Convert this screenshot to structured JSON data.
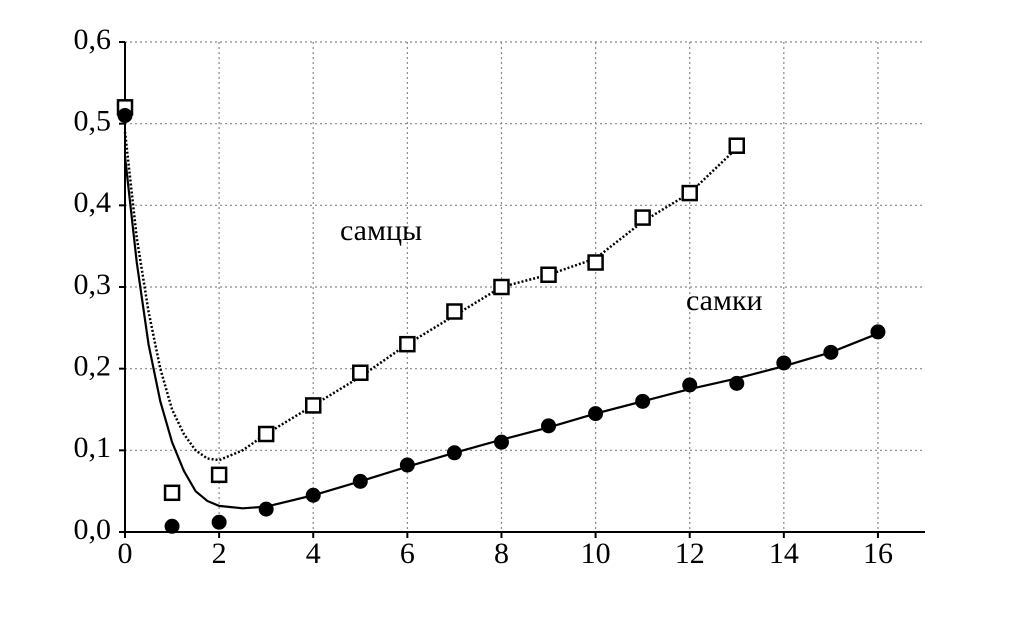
{
  "chart_data": {
    "type": "scatter",
    "series": [
      {
        "marker": "square",
        "color": "#000000",
        "x": [
          0,
          1,
          2,
          3,
          4,
          5,
          6,
          7,
          8,
          9,
          10,
          11,
          12,
          13
        ],
        "values": [
          0.52,
          0.048,
          0.07,
          0.12,
          0.155,
          0.195,
          0.23,
          0.27,
          0.3,
          0.315,
          0.33,
          0.385,
          0.415,
          0.473
        ]
      },
      {
        "marker": "circle",
        "color": "#000000",
        "x": [
          0,
          1,
          2,
          3,
          4,
          5,
          6,
          7,
          8,
          9,
          10,
          11,
          12,
          13,
          14,
          15,
          16
        ],
        "values": [
          0.51,
          0.007,
          0.012,
          0.028,
          0.045,
          0.062,
          0.082,
          0.097,
          0.11,
          0.13,
          0.145,
          0.16,
          0.18,
          0.182,
          0.207,
          0.22,
          0.245
        ]
      }
    ],
    "curves": [
      {
        "style": "dotted",
        "color": "#000000",
        "x": [
          0,
          0.25,
          0.5,
          0.75,
          1,
          1.25,
          1.5,
          1.75,
          2,
          2.5,
          3,
          4,
          5,
          6,
          7,
          8,
          9,
          10,
          11,
          12,
          13
        ],
        "values": [
          0.49,
          0.36,
          0.27,
          0.2,
          0.15,
          0.12,
          0.1,
          0.09,
          0.088,
          0.1,
          0.12,
          0.155,
          0.19,
          0.23,
          0.265,
          0.3,
          0.315,
          0.335,
          0.38,
          0.415,
          0.47
        ]
      },
      {
        "style": "solid",
        "color": "#000000",
        "x": [
          0,
          0.25,
          0.5,
          0.75,
          1,
          1.25,
          1.5,
          1.75,
          2,
          2.5,
          3,
          4,
          5,
          6,
          7,
          8,
          9,
          10,
          11,
          12,
          13,
          14,
          15,
          16
        ],
        "values": [
          0.46,
          0.33,
          0.23,
          0.16,
          0.11,
          0.075,
          0.05,
          0.038,
          0.032,
          0.029,
          0.031,
          0.045,
          0.062,
          0.08,
          0.097,
          0.113,
          0.128,
          0.145,
          0.16,
          0.175,
          0.188,
          0.203,
          0.22,
          0.243
        ]
      }
    ],
    "annotations": [
      "самцы",
      "самки"
    ],
    "xlim": [
      0,
      17
    ],
    "ylim": [
      0,
      0.6
    ],
    "xticks": [
      0,
      2,
      4,
      6,
      8,
      10,
      12,
      14,
      16
    ],
    "yticks": [
      {
        "value": 0,
        "label": "0,0"
      },
      {
        "value": 0.1,
        "label": "0,1"
      },
      {
        "value": 0.2,
        "label": "0,2"
      },
      {
        "value": 0.3,
        "label": "0,3"
      },
      {
        "value": 0.4,
        "label": "0,4"
      },
      {
        "value": 0.5,
        "label": "0,5"
      },
      {
        "value": 0.6,
        "label": "0,6"
      }
    ],
    "grid": true
  }
}
